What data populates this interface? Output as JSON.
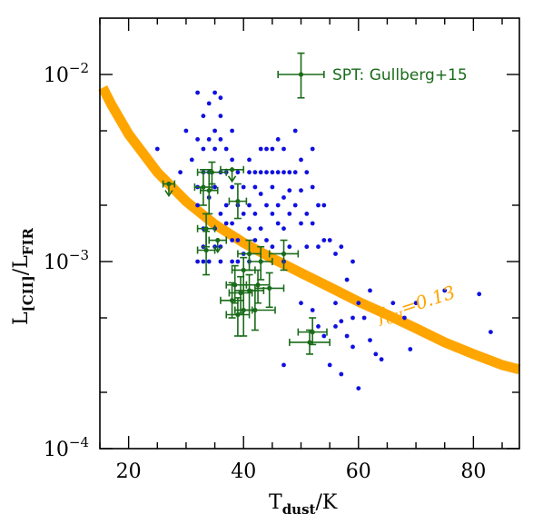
{
  "chart_data": {
    "type": "scatter",
    "x_scale": "linear",
    "y_scale": "log",
    "xlim": [
      15,
      88
    ],
    "ylim": [
      0.0001,
      0.02
    ],
    "x_major_ticks": [
      20,
      40,
      60,
      80
    ],
    "x_tick_labels": [
      "20",
      "40",
      "60",
      "80"
    ],
    "y_major_ticks": [
      0.0001,
      0.001,
      0.01
    ],
    "y_tick_labels": [
      {
        "base": "10",
        "exp": "−4"
      },
      {
        "base": "10",
        "exp": "−3"
      },
      {
        "base": "10",
        "exp": "−2"
      }
    ],
    "xlabel": {
      "main": "T",
      "sub": "dust",
      "rest": "/K"
    },
    "ylabel": {
      "main1": "L",
      "sub1": "[CII]",
      "mid": "/L",
      "sub2": "FIR"
    },
    "grid": false,
    "colors": {
      "field": "#1010e0",
      "spt": "#1a6b1a",
      "curve": "#ffa500"
    },
    "legend": {
      "text": "SPT: Gullberg+15",
      "x": 50,
      "y": 0.01,
      "xerr": 4,
      "yerr_lo": 0.0025,
      "yerr_hi": 0.003
    },
    "curve_label": {
      "main": "f",
      "sub": "CII",
      "rest": "=0.13"
    },
    "series": [
      {
        "kind": "points",
        "points": [
          [
            25,
            0.004
          ],
          [
            29,
            0.003
          ],
          [
            30,
            0.005
          ],
          [
            31,
            0.0035
          ],
          [
            32,
            0.008
          ],
          [
            32,
            0.0045
          ],
          [
            32,
            0.0025
          ],
          [
            32,
            0.002
          ],
          [
            32,
            0.001
          ],
          [
            33,
            0.006
          ],
          [
            33,
            0.004
          ],
          [
            33,
            0.003
          ],
          [
            33,
            0.0015
          ],
          [
            33,
            0.0012
          ],
          [
            33,
            0.001
          ],
          [
            34,
            0.007
          ],
          [
            34,
            0.0045
          ],
          [
            34,
            0.003
          ],
          [
            34,
            0.0022
          ],
          [
            34,
            0.001
          ],
          [
            35,
            0.008
          ],
          [
            35,
            0.005
          ],
          [
            35,
            0.004
          ],
          [
            35,
            0.0025
          ],
          [
            35,
            0.0015
          ],
          [
            35,
            0.0012
          ],
          [
            36,
            0.0075
          ],
          [
            36,
            0.006
          ],
          [
            36,
            0.0045
          ],
          [
            36,
            0.003
          ],
          [
            36,
            0.0018
          ],
          [
            36,
            0.0012
          ],
          [
            36,
            0.001
          ],
          [
            37,
            0.004
          ],
          [
            37,
            0.003
          ],
          [
            37,
            0.002
          ],
          [
            37,
            0.0016
          ],
          [
            38,
            0.005
          ],
          [
            38,
            0.0035
          ],
          [
            38,
            0.0025
          ],
          [
            38,
            0.0016
          ],
          [
            38,
            0.0013
          ],
          [
            38,
            0.001
          ],
          [
            39,
            0.003
          ],
          [
            39,
            0.002
          ],
          [
            39,
            0.0013
          ],
          [
            39,
            0.001
          ],
          [
            40,
            0.0025
          ],
          [
            40,
            0.0018
          ],
          [
            40,
            0.0011
          ],
          [
            40,
            0.0009
          ],
          [
            41,
            0.0035
          ],
          [
            41,
            0.003
          ],
          [
            41,
            0.002
          ],
          [
            41,
            0.0015
          ],
          [
            41,
            0.001
          ],
          [
            42,
            0.003
          ],
          [
            42,
            0.0025
          ],
          [
            42,
            0.0018
          ],
          [
            42,
            0.0013
          ],
          [
            43,
            0.004
          ],
          [
            43,
            0.003
          ],
          [
            43,
            0.0023
          ],
          [
            43,
            0.0015
          ],
          [
            44,
            0.004
          ],
          [
            44,
            0.003
          ],
          [
            44,
            0.002
          ],
          [
            44,
            0.0013
          ],
          [
            45,
            0.004
          ],
          [
            45,
            0.003
          ],
          [
            45,
            0.0025
          ],
          [
            45,
            0.0018
          ],
          [
            45,
            0.0012
          ],
          [
            46,
            0.0045
          ],
          [
            46,
            0.003
          ],
          [
            46,
            0.002
          ],
          [
            46,
            0.0016
          ],
          [
            47,
            0.004
          ],
          [
            47,
            0.003
          ],
          [
            47,
            0.0022
          ],
          [
            47,
            0.0015
          ],
          [
            47,
            0.001
          ],
          [
            47,
            0.00028
          ],
          [
            48,
            0.003
          ],
          [
            48,
            0.0024
          ],
          [
            48,
            0.0018
          ],
          [
            48,
            0.0012
          ],
          [
            49,
            0.005
          ],
          [
            49,
            0.003
          ],
          [
            49,
            0.002
          ],
          [
            50,
            0.0035
          ],
          [
            50,
            0.0024
          ],
          [
            50,
            0.0016
          ],
          [
            50,
            0.0006
          ],
          [
            51,
            0.003
          ],
          [
            51,
            0.0018
          ],
          [
            51,
            0.0012
          ],
          [
            52,
            0.004
          ],
          [
            52,
            0.0025
          ],
          [
            52,
            0.0016
          ],
          [
            52,
            0.00055
          ],
          [
            53,
            0.002
          ],
          [
            53,
            0.0012
          ],
          [
            53,
            0.00045
          ],
          [
            54,
            0.002
          ],
          [
            54,
            0.0013
          ],
          [
            54,
            0.0004
          ],
          [
            55,
            0.0013
          ],
          [
            55,
            0.00028
          ],
          [
            56,
            0.0011
          ],
          [
            56,
            0.0006
          ],
          [
            56,
            0.00045
          ],
          [
            57,
            0.0012
          ],
          [
            57,
            0.00048
          ],
          [
            57,
            0.00025
          ],
          [
            58,
            0.0008
          ],
          [
            58,
            0.0004
          ],
          [
            59,
            0.001
          ],
          [
            59,
            0.0005
          ],
          [
            59,
            0.00035
          ],
          [
            60,
            0.0006
          ],
          [
            60,
            0.00021
          ],
          [
            61,
            0.0005
          ],
          [
            62,
            0.0007
          ],
          [
            62,
            0.00038
          ],
          [
            63,
            0.00032
          ],
          [
            64,
            0.0003
          ],
          [
            66,
            0.0006
          ],
          [
            68,
            0.0005
          ],
          [
            69,
            0.00034
          ],
          [
            70,
            0.0006
          ],
          [
            75,
            0.0007
          ],
          [
            81,
            0.00067
          ],
          [
            83,
            0.00042
          ]
        ]
      },
      {
        "kind": "errorbars",
        "points": [
          {
            "x": 27.0,
            "y": 0.0026,
            "xerr": 1.0,
            "yerr_lo": 0,
            "yerr_hi": 0,
            "upper": true
          },
          {
            "x": 33.0,
            "y": 0.0025,
            "xerr": 1.5,
            "yerr_lo": 0.0005,
            "yerr_hi": 0.0006,
            "upper": false
          },
          {
            "x": 34.0,
            "y": 0.0024,
            "xerr": 1.5,
            "yerr_lo": 0.0006,
            "yerr_hi": 0.0007,
            "upper": false
          },
          {
            "x": 34.5,
            "y": 0.003,
            "xerr": 2.5,
            "yerr_lo": 0.0004,
            "yerr_hi": 0.0004,
            "upper": false
          },
          {
            "x": 38.0,
            "y": 0.0031,
            "xerr": 2.0,
            "yerr_lo": 0,
            "yerr_hi": 0,
            "upper": true
          },
          {
            "x": 39.0,
            "y": 0.0021,
            "xerr": 1.5,
            "yerr_lo": 0.0004,
            "yerr_hi": 0.0005,
            "upper": false
          },
          {
            "x": 33.5,
            "y": 0.0015,
            "xerr": 1.5,
            "yerr_lo": 0.0003,
            "yerr_hi": 0.0003,
            "upper": false
          },
          {
            "x": 33.5,
            "y": 0.00115,
            "xerr": 1.5,
            "yerr_lo": 0.0003,
            "yerr_hi": 0.0003,
            "upper": false
          },
          {
            "x": 35.5,
            "y": 0.0013,
            "xerr": 1.5,
            "yerr_lo": 0,
            "yerr_hi": 0,
            "upper": true
          },
          {
            "x": 41.0,
            "y": 0.0011,
            "xerr": 2.0,
            "yerr_lo": 0.0002,
            "yerr_hi": 0.0002,
            "upper": false
          },
          {
            "x": 43.0,
            "y": 0.001,
            "xerr": 2.0,
            "yerr_lo": 0.0002,
            "yerr_hi": 0.0002,
            "upper": false
          },
          {
            "x": 47.0,
            "y": 0.0011,
            "xerr": 2.5,
            "yerr_lo": 0.0002,
            "yerr_hi": 0.0002,
            "upper": false
          },
          {
            "x": 40.0,
            "y": 0.0009,
            "xerr": 2.0,
            "yerr_lo": 0.00015,
            "yerr_hi": 0.00015,
            "upper": false
          },
          {
            "x": 38.5,
            "y": 0.00075,
            "xerr": 1.5,
            "yerr_lo": 0.00015,
            "yerr_hi": 0.0002,
            "upper": false
          },
          {
            "x": 39.5,
            "y": 0.00068,
            "xerr": 2.0,
            "yerr_lo": 0.00015,
            "yerr_hi": 0.00015,
            "upper": false
          },
          {
            "x": 38.0,
            "y": 0.00062,
            "xerr": 2.0,
            "yerr_lo": 0.00012,
            "yerr_hi": 0.00015,
            "upper": false
          },
          {
            "x": 41.0,
            "y": 0.0007,
            "xerr": 2.5,
            "yerr_lo": 0.00015,
            "yerr_hi": 0.00015,
            "upper": false
          },
          {
            "x": 42.5,
            "y": 0.00075,
            "xerr": 2.0,
            "yerr_lo": 0.00015,
            "yerr_hi": 0.00015,
            "upper": false
          },
          {
            "x": 44.5,
            "y": 0.00072,
            "xerr": 2.5,
            "yerr_lo": 0.00015,
            "yerr_hi": 0.00015,
            "upper": false
          },
          {
            "x": 40.0,
            "y": 0.00055,
            "xerr": 1.5,
            "yerr_lo": 0.00015,
            "yerr_hi": 0.0002,
            "upper": false
          },
          {
            "x": 39.0,
            "y": 0.00052,
            "xerr": 2.0,
            "yerr_lo": 0.00012,
            "yerr_hi": 0.00012,
            "upper": false
          },
          {
            "x": 42.0,
            "y": 0.00055,
            "xerr": 3.5,
            "yerr_lo": 0.00012,
            "yerr_hi": 0.00015,
            "upper": false
          },
          {
            "x": 52.0,
            "y": 0.00042,
            "xerr": 2.5,
            "yerr_lo": 6e-05,
            "yerr_hi": 8e-05,
            "upper": false
          },
          {
            "x": 51.5,
            "y": 0.00037,
            "xerr": 3.5,
            "yerr_lo": 5e-05,
            "yerr_hi": 6e-05,
            "upper": false
          }
        ]
      },
      {
        "kind": "curve",
        "points": [
          [
            15.5,
            0.0085
          ],
          [
            17,
            0.0069
          ],
          [
            20,
            0.0048
          ],
          [
            25,
            0.003
          ],
          [
            30,
            0.0021
          ],
          [
            35,
            0.00158
          ],
          [
            40,
            0.00126
          ],
          [
            45,
            0.00104
          ],
          [
            50,
            0.00087
          ],
          [
            55,
            0.00073
          ],
          [
            60,
            0.00061
          ],
          [
            65,
            0.00052
          ],
          [
            70,
            0.00044
          ],
          [
            75,
            0.00037
          ],
          [
            80,
            0.00032
          ],
          [
            85,
            0.00028
          ],
          [
            88,
            0.000265
          ]
        ]
      }
    ]
  }
}
